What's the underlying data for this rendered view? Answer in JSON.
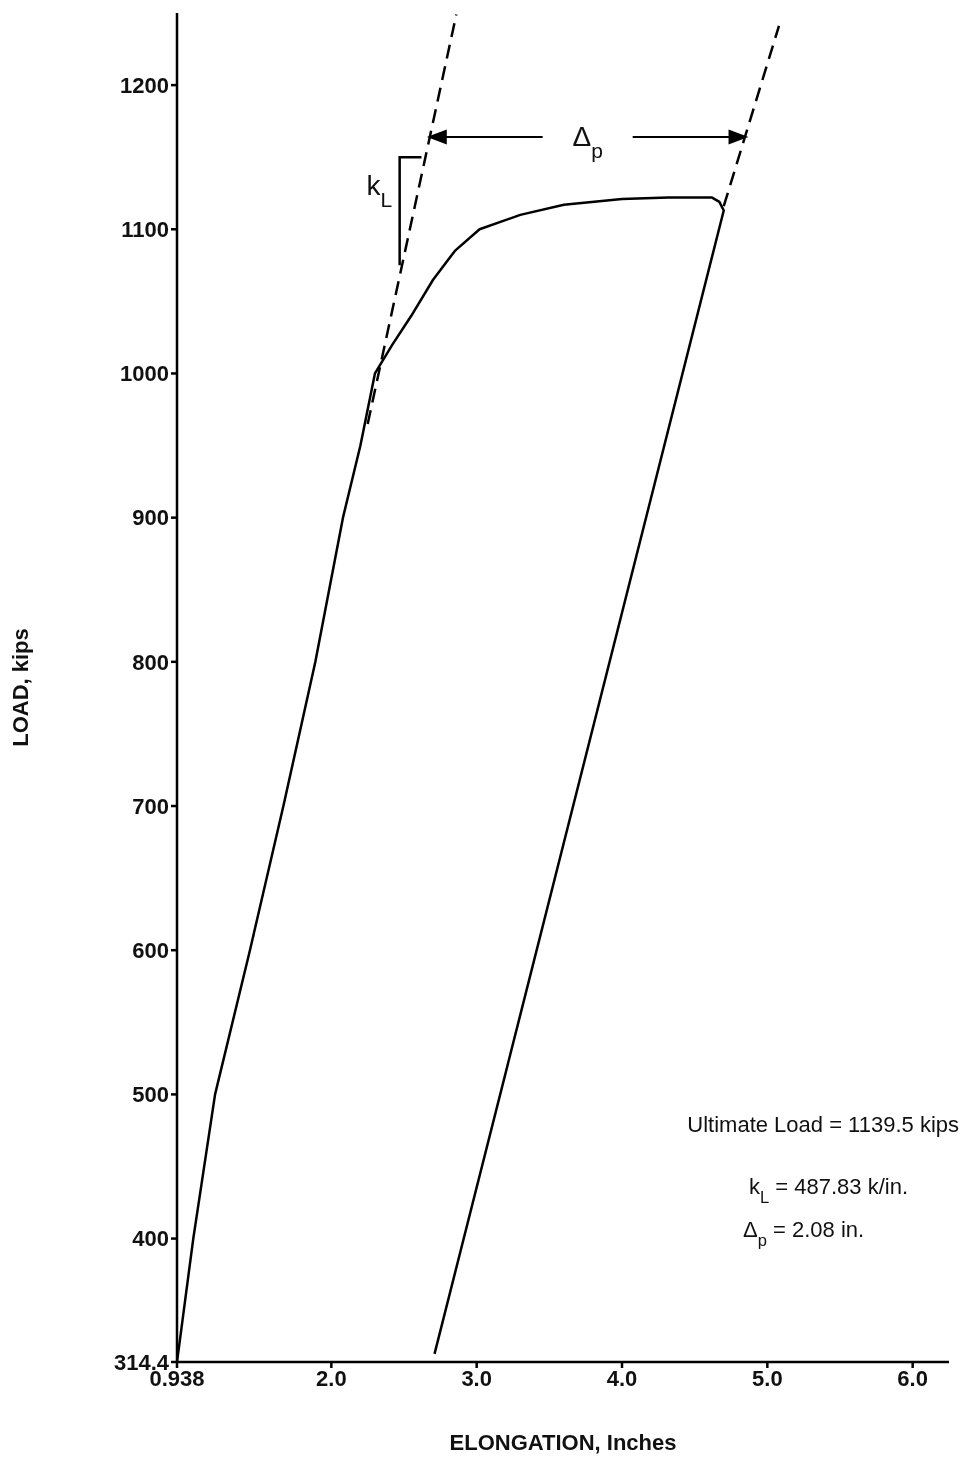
{
  "chart_data": {
    "type": "line",
    "xlabel": "ELONGATION, Inches",
    "ylabel": "LOAD, kips",
    "xlim": [
      0.938,
      6.25
    ],
    "xticks": [
      0.938,
      {
        "value": 2,
        "label": "2.0"
      },
      {
        "value": 3,
        "label": "3.0"
      },
      {
        "value": 4,
        "label": "4.0"
      },
      {
        "value": 5,
        "label": "5.0"
      },
      {
        "value": 6,
        "label": "6.0"
      }
    ],
    "ylim": [
      314.4,
      1250
    ],
    "yticks": [
      314.4,
      400,
      500,
      600,
      700,
      800,
      900,
      1000,
      1100,
      1200
    ],
    "marker": "none",
    "series": [
      {
        "color": "#000000",
        "line_style": "solid",
        "x": [
          0.938,
          1.05,
          1.2,
          1.44,
          1.67,
          1.89,
          2.08,
          2.2,
          2.3,
          2.42,
          2.55,
          2.7,
          2.85,
          3.02,
          3.3,
          3.6,
          4.0,
          4.32,
          4.62,
          4.67,
          4.7,
          2.71
        ],
        "values": [
          314.4,
          400,
          500,
          600,
          700,
          800,
          900,
          950,
          1000,
          1020,
          1040,
          1065,
          1085,
          1100,
          1110,
          1117,
          1121,
          1122,
          1122,
          1119,
          1113,
          320
        ]
      },
      {
        "color": "#000000",
        "line_style": "dashed",
        "x": [
          2.25,
          2.86
        ],
        "values": [
          965,
          1249
        ]
      },
      {
        "color": "#000000",
        "line_style": "dashed",
        "x": [
          4.7,
          5.08
        ],
        "values": [
          1116,
          1241
        ]
      }
    ],
    "annotations": [
      "k$_{L}$",
      {
        "text": "Δ$_{p}$",
        "x": 4.85,
        "y": 1164
      },
      "Ultimate Load = 1139.5 kips",
      "k$_{L}$ = 487.83 k/in.",
      "Δ$_{p}$ = 2.08 in."
    ]
  }
}
